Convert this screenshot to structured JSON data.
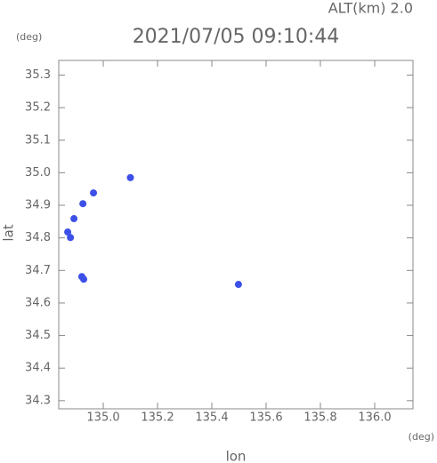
{
  "chart_data": {
    "type": "scatter",
    "title": "2021/07/05 09:10:44",
    "annotation": "ALT(km) 2.0",
    "x_label": "lon",
    "y_label": "lat",
    "x_unit": "(deg)",
    "y_unit": "(deg)",
    "x": [
      135.1,
      134.964,
      134.925,
      134.892,
      134.869,
      134.879,
      134.921,
      134.928,
      135.498
    ],
    "y": [
      34.985,
      34.938,
      34.905,
      34.859,
      34.818,
      34.801,
      34.681,
      34.673,
      34.657
    ],
    "color": "#3c50e8",
    "xlim": [
      134.836,
      136.141
    ],
    "ylim": [
      34.275,
      35.345
    ],
    "xticks": [
      {
        "value": 135,
        "label": "135.0"
      },
      135.2,
      135.4,
      135.6,
      135.8,
      {
        "value": 136,
        "label": "136.0"
      }
    ],
    "yticks": [
      34.3,
      34.4,
      34.5,
      34.6,
      34.7,
      34.8,
      34.9,
      {
        "value": 35,
        "label": "35.0"
      },
      35.1,
      35.2,
      35.3
    ]
  }
}
